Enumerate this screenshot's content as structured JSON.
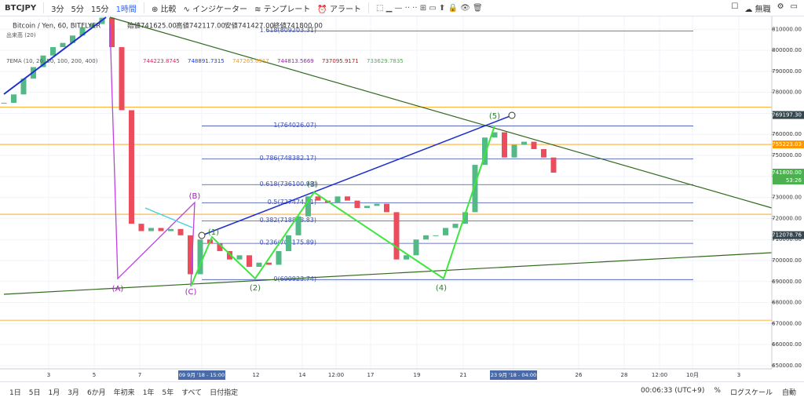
{
  "toolbar": {
    "symbol": "BTCJPY",
    "intervals": [
      "3分",
      "5分",
      "15分",
      "1時間"
    ],
    "compare": "比較",
    "indicators": "インジケーター",
    "templates": "テンプレート",
    "alerts": "アラート",
    "layout_name": "無職"
  },
  "legend": {
    "title": "Bitcoin / Yen, 60, BITFLYER",
    "ohlc": [
      "始値741625.00",
      "高値742117.00",
      "安値741427.00",
      "終値741800.00"
    ],
    "volume": "出来高 (20)",
    "ema": "7EMA (10, 20, 50, 100, 200, 400)",
    "ema_values": [
      {
        "text": "744223.8745",
        "color": "#e91e63"
      },
      {
        "text": "748891.7315",
        "color": "#1e3cf0"
      },
      {
        "text": "747265.0917",
        "color": "#ff9800"
      },
      {
        "text": "744813.5669",
        "color": "#9c27b0"
      },
      {
        "text": "737095.9171",
        "color": "#b71c1c"
      },
      {
        "text": "733629.7835",
        "color": "#4caf50"
      }
    ]
  },
  "chart_data": {
    "type": "candlestick",
    "values": [
      775000,
      779000,
      786500,
      792000,
      797500,
      801500,
      803500,
      807000,
      811000,
      812500,
      815500,
      801500,
      771500,
      717500,
      714000,
      715500,
      714000,
      715000,
      712000,
      693500,
      710000,
      708000,
      704500,
      700500,
      702500,
      697000,
      699000,
      698000,
      704500,
      712000,
      721000,
      730500,
      728500,
      727500,
      730500,
      728500,
      725000,
      726000,
      727000,
      723000,
      700500,
      702500,
      710000,
      712000,
      712000,
      715500,
      717500,
      723000,
      745500,
      758500,
      761000,
      749000,
      755000,
      756500,
      753000,
      749000,
      741800
    ],
    "up_color": "#53b987",
    "down_color": "#eb4d5c",
    "ylim": [
      648500,
      815700
    ],
    "yticks": [
      {
        "value": 650000,
        "label": "650000.00"
      },
      {
        "value": 660000,
        "label": "660000.00"
      },
      {
        "value": 670000,
        "label": "670000.00"
      },
      {
        "value": 680000,
        "label": "680000.00"
      },
      {
        "value": 690000,
        "label": "690000.00"
      },
      {
        "value": 700000,
        "label": "700000.00"
      },
      {
        "value": 710000,
        "label": "710000.00"
      },
      {
        "value": 720000,
        "label": "720000.00"
      },
      {
        "value": 730000,
        "label": "730000.00"
      },
      {
        "value": 740000,
        "label": "740000.00"
      },
      {
        "value": 750000,
        "label": "750000.00"
      },
      {
        "value": 760000,
        "label": "760000.00"
      },
      {
        "value": 770000,
        "label": "770000.00"
      },
      {
        "value": 780000,
        "label": "780000.00"
      },
      {
        "value": 790000,
        "label": "790000.00"
      },
      {
        "value": 800000,
        "label": "800000.00"
      },
      {
        "value": 810000,
        "label": "810000.00"
      }
    ],
    "grid": true,
    "fib_color": "#3f51b5",
    "fib_levels": [
      {
        "value": 809203.31,
        "label": "1.618(809203.31)"
      },
      {
        "value": 764026.07,
        "label": "1(764026.07)"
      },
      {
        "value": 748382.17,
        "label": "0.786(748382.17)"
      },
      {
        "value": 736100.98,
        "label": "0.618(736100.98)"
      },
      {
        "value": 727474.91,
        "label": "0.5(727474.91)"
      },
      {
        "value": 718848.83,
        "label": "0.382(718848.83)"
      },
      {
        "value": 708175.89,
        "label": "0.236(708175.89)"
      },
      {
        "value": 690923.74,
        "label": "0(690923.74)"
      }
    ],
    "hline_color": "#ff9800",
    "hlines": [
      773000,
      755223.03,
      722000,
      671600
    ],
    "price_badges": [
      {
        "value": 769197.3,
        "label": "769197.30",
        "color": "#37474f"
      },
      {
        "value": 755223.03,
        "label": "755223.03",
        "color": "#ff9800"
      },
      {
        "value": 741800,
        "label": "741800.00",
        "color": "#4caf50"
      },
      {
        "value": 712078.76,
        "label": "712078.76",
        "color": "#37474f"
      }
    ],
    "countdown": "53:26"
  },
  "waves": {
    "labels": [
      "(A)",
      "(B)",
      "(C)",
      "(1)",
      "(2)",
      "(3)",
      "(4)",
      "(5)"
    ]
  },
  "time_axis": {
    "labels": [
      "3",
      "5",
      "7",
      "09 9月 '18 - 15:00",
      "12",
      "14",
      "12:00",
      "17",
      "19",
      "21",
      "23 9月 '18 - 04:00",
      "26",
      "28",
      "12:00",
      "10月",
      "3"
    ]
  },
  "bottom_bar": {
    "ranges": [
      "1日",
      "5日",
      "1月",
      "3月",
      "6か月",
      "年初来",
      "1年",
      "5年",
      "すべて",
      "日付指定"
    ],
    "clock": "00:06:33 (UTC+9)",
    "percent": "%",
    "log": "ログスケール",
    "auto": "自動"
  }
}
